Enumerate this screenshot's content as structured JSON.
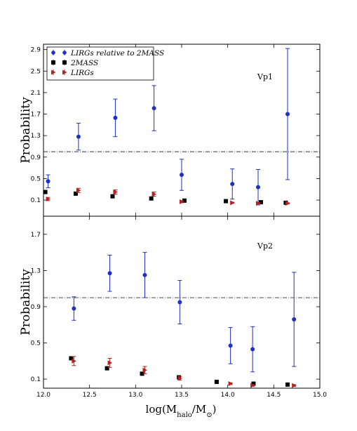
{
  "figure": {
    "xlabel": "log(M",
    "xlabel_sub": "halo",
    "xlabel_mid": "/M",
    "xlabel_sub2": "⊙",
    "xlabel_end": ")"
  },
  "colors": {
    "ratio": "#1f2fbf",
    "twomass": "#000000",
    "lirgs": "#b22222",
    "reference_line": "#333333"
  },
  "chart_data": [
    {
      "type": "scatter",
      "panel_label": "Vp1",
      "ylabel": "Probability",
      "xlim": [
        12.0,
        15.0
      ],
      "ylim": [
        -0.2,
        3.0
      ],
      "yticks": [
        0.1,
        0.5,
        0.9,
        1.3,
        1.7,
        2.1,
        2.5,
        2.9
      ],
      "yticklabels": [
        "0.1",
        "0.5",
        "0.9",
        "1.3",
        "1.7",
        "2.1",
        "2.5",
        "2.9"
      ],
      "reference_line": 1.0,
      "grid": false,
      "legend_position": "top-left",
      "series": [
        {
          "name": "LIRGs relative to 2MASS",
          "marker": "circle",
          "color": "#1f2fbf",
          "x": [
            12.05,
            12.38,
            12.78,
            13.2,
            13.5,
            14.05,
            14.33,
            14.65
          ],
          "y": [
            0.45,
            1.28,
            1.63,
            1.81,
            0.57,
            0.4,
            0.34,
            1.7
          ],
          "err": [
            0.12,
            0.25,
            0.35,
            0.42,
            0.29,
            0.28,
            0.33,
            1.22
          ]
        },
        {
          "name": "2MASS",
          "marker": "square",
          "color": "#000000",
          "x": [
            12.02,
            12.35,
            12.75,
            13.17,
            13.53,
            13.98,
            14.36,
            14.63
          ],
          "y": [
            0.25,
            0.22,
            0.17,
            0.13,
            0.09,
            0.08,
            0.06,
            0.05
          ],
          "err": [
            0.0,
            0.0,
            0.0,
            0.0,
            0.0,
            0.0,
            0.0,
            0.0
          ]
        },
        {
          "name": "LIRGs",
          "marker": "triangle-right",
          "color": "#b22222",
          "x": [
            12.05,
            12.38,
            12.78,
            13.2,
            13.5,
            14.05,
            14.33,
            14.65
          ],
          "y": [
            0.12,
            0.28,
            0.25,
            0.21,
            0.07,
            0.05,
            0.04,
            0.04
          ],
          "err": [
            0.03,
            0.04,
            0.04,
            0.04,
            0.02,
            0.01,
            0.01,
            0.01
          ]
        }
      ]
    },
    {
      "type": "scatter",
      "panel_label": "Vp2",
      "ylabel": "Probability",
      "xlabel": "log(Mhalo/M⊙)",
      "xlim": [
        12.0,
        15.0
      ],
      "ylim": [
        0.0,
        1.9
      ],
      "xticks": [
        12.0,
        12.5,
        13.0,
        13.5,
        14.0,
        14.5,
        15.0
      ],
      "xticklabels": [
        "12.0",
        "12.5",
        "13.0",
        "13.5",
        "14.0",
        "14.5",
        "15.0"
      ],
      "yticks": [
        0.1,
        0.5,
        0.9,
        1.3,
        1.7
      ],
      "yticklabels": [
        "0.1",
        "0.5",
        "0.9",
        "1.3",
        "1.7"
      ],
      "reference_line": 1.0,
      "grid": false,
      "series": [
        {
          "name": "LIRGs relative to 2MASS",
          "marker": "circle",
          "color": "#1f2fbf",
          "x": [
            12.33,
            12.72,
            13.1,
            13.48,
            14.03,
            14.27,
            14.72
          ],
          "y": [
            0.88,
            1.27,
            1.25,
            0.95,
            0.47,
            0.43,
            0.76
          ],
          "err": [
            0.13,
            0.2,
            0.25,
            0.24,
            0.2,
            0.25,
            0.52
          ]
        },
        {
          "name": "2MASS",
          "marker": "square",
          "color": "#000000",
          "x": [
            12.3,
            12.69,
            13.07,
            13.47,
            13.88,
            14.28,
            14.65
          ],
          "y": [
            0.33,
            0.22,
            0.16,
            0.12,
            0.07,
            0.05,
            0.04
          ],
          "err": [
            0.0,
            0.0,
            0.0,
            0.0,
            0.0,
            0.0,
            0.0
          ]
        },
        {
          "name": "LIRGs",
          "marker": "triangle-right",
          "color": "#b22222",
          "x": [
            12.33,
            12.72,
            13.1,
            13.48,
            14.03,
            14.27,
            14.72
          ],
          "y": [
            0.3,
            0.28,
            0.2,
            0.11,
            0.05,
            0.03,
            0.03
          ],
          "err": [
            0.05,
            0.05,
            0.04,
            0.02,
            0.01,
            0.01,
            0.01
          ]
        }
      ]
    }
  ]
}
